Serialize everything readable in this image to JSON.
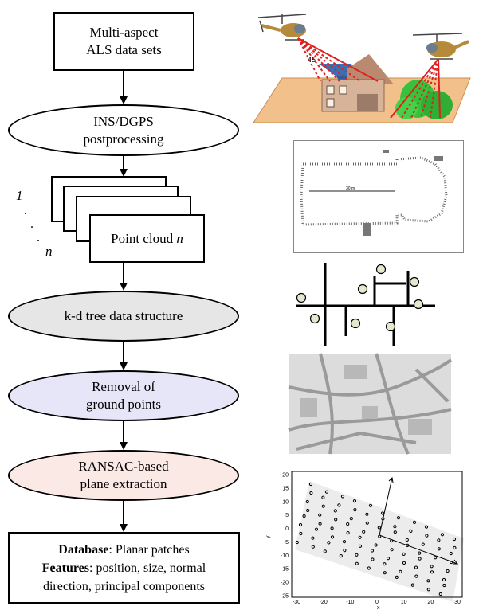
{
  "flowchart": {
    "node1": {
      "line1": "Multi-aspect",
      "line2": "ALS data sets"
    },
    "node2": {
      "line1": "INS/DGPS",
      "line2": "postprocessing"
    },
    "stack": {
      "label": "Point cloud ",
      "label_var": "n",
      "top_index": "1",
      "dots": ". . .",
      "bottom_index": "n"
    },
    "node4": {
      "label": "k-d tree data structure",
      "fill": "#e6e6e6"
    },
    "node5": {
      "line1": "Removal of",
      "line2": "ground points",
      "fill": "#e6e6f8"
    },
    "node6": {
      "line1": "RANSAC-based",
      "line2": "plane extraction",
      "fill": "#fbe9e6"
    },
    "node7": {
      "db_key": "Database",
      "db_val": ": Planar patches",
      "feat_key": "Features",
      "feat_val": ": position, size, normal",
      "line3": "direction, principal components"
    }
  },
  "illustrations": {
    "als_scene": {
      "angle_label": "45"
    },
    "point_cloud_plan": {
      "scale_label": "30 m"
    },
    "pca_plot": {
      "yticks": [
        "20",
        "15",
        "10",
        "5",
        "0",
        "-5",
        "-10",
        "-15",
        "-20",
        "-25"
      ],
      "xticks": [
        "-30",
        "-20",
        "-10",
        "0",
        "10",
        "20",
        "30"
      ],
      "ylabel": "y",
      "xlabel": "x"
    }
  }
}
